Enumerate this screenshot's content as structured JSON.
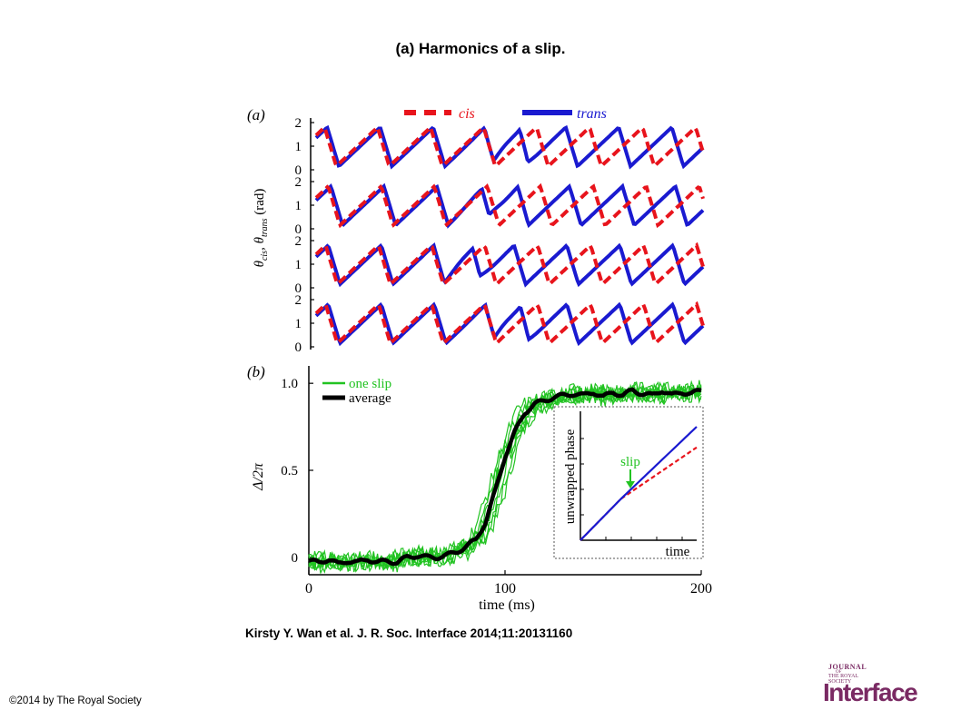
{
  "slide": {
    "title": "(a) Harmonics of a slip.",
    "citation": "Kirsty Y. Wan et al. J. R. Soc. Interface 2014;11:20131160",
    "copyright": "©2014 by The Royal Society"
  },
  "logo": {
    "journal": "JOURNAL",
    "of": "OF",
    "society_line1": "THE ROYAL",
    "society_line2": "SOCIETY",
    "main": "Interface",
    "color": "#7a2a63"
  },
  "colors": {
    "cis": "#e8141c",
    "trans": "#1a1ad0",
    "one_slip": "#22c322",
    "average": "#000000"
  },
  "chart_data": [
    {
      "type": "line",
      "panel_label": "(a)",
      "ylabel_parts": [
        "θ",
        "cis",
        ", θ",
        "trans",
        " (rad)"
      ],
      "ytick_labels": [
        "0",
        "1",
        "2"
      ],
      "ylim": [
        0,
        2
      ],
      "legend": [
        {
          "name": "cis",
          "style": "dashed",
          "color": "#e8141c"
        },
        {
          "name": "trans",
          "style": "solid",
          "color": "#1a1ad0"
        }
      ],
      "legend_position": "top",
      "rows": [
        {
          "cycles": 7.3,
          "phase": 0.62,
          "slip_at": 0.5
        },
        {
          "cycles": 7.3,
          "phase": 0.55,
          "slip_at": 0.45
        },
        {
          "cycles": 7.3,
          "phase": 0.6,
          "slip_at": 0.4
        },
        {
          "cycles": 7.3,
          "phase": 0.6,
          "slip_at": 0.5
        }
      ]
    },
    {
      "type": "line",
      "panel_label": "(b)",
      "xlabel": "time (ms)",
      "ylabel": "Δ/2π",
      "xlim": [
        0,
        200
      ],
      "ylim": [
        -0.1,
        1.1
      ],
      "xticks": [
        0,
        100,
        200
      ],
      "xtick_labels": [
        "0",
        "100",
        "200"
      ],
      "yticks": [
        0,
        0.5,
        1.0
      ],
      "ytick_labels": [
        "0",
        "0.5",
        "1.0"
      ],
      "legend": [
        {
          "name": "one slip",
          "color": "#22c322"
        },
        {
          "name": "average",
          "color": "#000000"
        }
      ],
      "legend_position": "top-left",
      "series": [
        {
          "name": "average",
          "x": [
            0,
            5,
            10,
            15,
            20,
            25,
            30,
            35,
            40,
            45,
            50,
            55,
            60,
            65,
            70,
            75,
            80,
            85,
            90,
            95,
            100,
            105,
            110,
            115,
            120,
            125,
            130,
            135,
            140,
            145,
            150,
            155,
            160,
            165,
            170,
            175,
            180,
            185,
            190,
            195,
            200
          ],
          "values": [
            -0.02,
            -0.03,
            -0.01,
            -0.04,
            -0.02,
            -0.03,
            -0.01,
            -0.03,
            -0.02,
            -0.03,
            0.0,
            0.01,
            0.0,
            0.0,
            0.01,
            0.03,
            0.06,
            0.1,
            0.2,
            0.38,
            0.58,
            0.72,
            0.83,
            0.88,
            0.9,
            0.92,
            0.93,
            0.94,
            0.93,
            0.95,
            0.92,
            0.95,
            0.93,
            0.96,
            0.94,
            0.93,
            0.96,
            0.93,
            0.95,
            0.94,
            0.96
          ]
        },
        {
          "name": "one slip",
          "count": 8,
          "spread": 0.045
        }
      ],
      "inset": {
        "xlabel": "time",
        "ylabel": "unwrapped phase",
        "annotation": "slip",
        "slip_at": 0.35,
        "curves": [
          {
            "name": "cis",
            "style": "dashed",
            "color": "#e8141c",
            "end_value": 0.72
          },
          {
            "name": "trans",
            "style": "solid",
            "color": "#1a1ad0",
            "end_value": 0.88
          }
        ]
      }
    }
  ]
}
